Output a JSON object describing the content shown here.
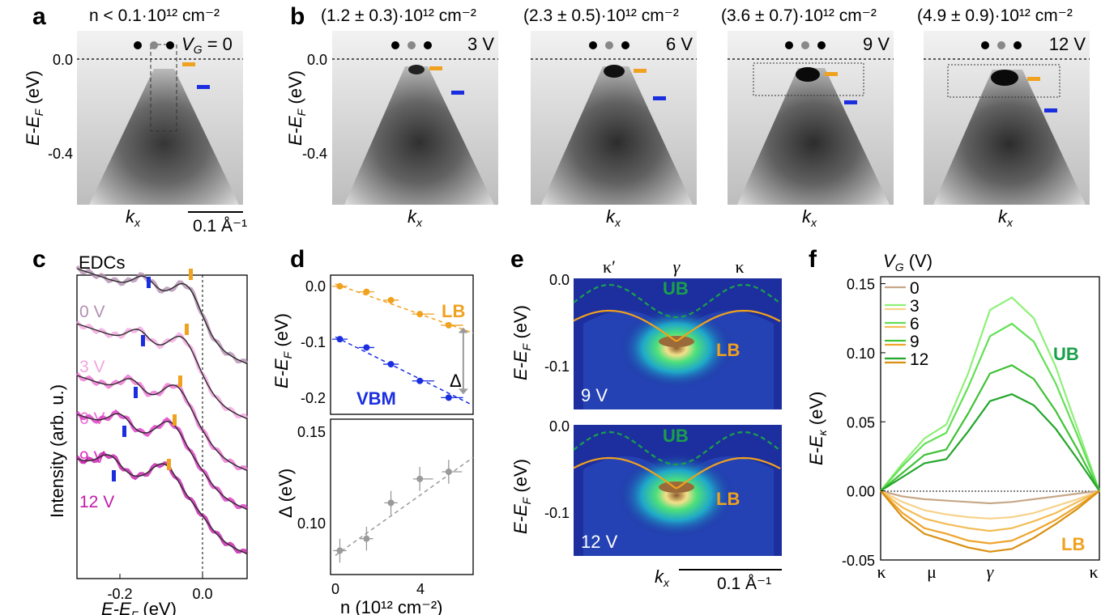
{
  "panels": {
    "a": {
      "letter": "a",
      "density": "n < 0.1·10¹² cm⁻²",
      "gate": "V",
      "gate_sub": "G",
      "gate_val": " = 0",
      "ylabel_main": "E-E",
      "ylabel_sub": "F",
      "ylabel_unit": " (eV)",
      "yticks": [
        "0.0",
        "-0.4"
      ],
      "xlabel": "k",
      "xlabel_sub": "x",
      "scalebar": "0.1 Å⁻¹"
    },
    "b": {
      "letter": "b",
      "subpanels": [
        {
          "density": "(1.2 ± 0.3)·10¹² cm⁻²",
          "voltage": "3 V"
        },
        {
          "density": "(2.3 ± 0.5)·10¹² cm⁻²",
          "voltage": "6 V"
        },
        {
          "density": "(3.6 ± 0.7)·10¹² cm⁻²",
          "voltage": "9 V"
        },
        {
          "density": "(4.9 ± 0.9)·10¹² cm⁻²",
          "voltage": "12 V"
        }
      ],
      "yticks": [
        "0.0",
        "-0.4"
      ],
      "xlabel": "k",
      "xlabel_sub": "x"
    },
    "c": {
      "letter": "c",
      "title": "EDCs",
      "ylabel": "Intensity (arb. u.)",
      "xlabel_main": "E-E",
      "xlabel_sub": "F",
      "xlabel_unit": " (eV)",
      "xticks": [
        "-0.2",
        "0.0"
      ],
      "curves": [
        {
          "label": "0 V",
          "color": "#b48fb2"
        },
        {
          "label": "3 V",
          "color": "#f2a5e0"
        },
        {
          "label": "6 V",
          "color": "#ec6fd2"
        },
        {
          "label": "9 V",
          "color": "#dc35c2"
        },
        {
          "label": "12 V",
          "color": "#c21aa8"
        }
      ]
    },
    "d": {
      "letter": "d",
      "top_ylabel_main": "E-E",
      "top_ylabel_sub": "F",
      "top_ylabel_unit": " (eV)",
      "top_yticks": [
        "0.0",
        "-0.1",
        "-0.2"
      ],
      "lb_label": "LB",
      "vbm_label": "VBM",
      "delta": "Δ",
      "bottom_ylabel": "Δ (eV)",
      "bottom_yticks": [
        "0.15",
        "0.10"
      ],
      "xlabel": "n (10¹² cm⁻²)",
      "xticks": [
        "0",
        "4"
      ]
    },
    "e": {
      "letter": "e",
      "top_labels": [
        "κ′",
        "γ",
        "κ"
      ],
      "ub": "UB",
      "lb": "LB",
      "ylabel_main": "E-E",
      "ylabel_sub": "F",
      "ylabel_unit": " (eV)",
      "yticks": [
        "0.0",
        "-0.1"
      ],
      "v_top": "9 V",
      "v_bottom": "12 V",
      "xlabel": "k",
      "xlabel_sub": "x",
      "scalebar": "0.1 Å⁻¹"
    },
    "f": {
      "letter": "f",
      "legend_title": "V",
      "legend_title_sub": "G",
      "legend_title_unit": " (V)",
      "legend": [
        "0",
        "3",
        "6",
        "9",
        "12"
      ],
      "ylabel_main": "E-E",
      "ylabel_sub": "κ",
      "ylabel_unit": " (eV)",
      "yticks": [
        "0.15",
        "0.10",
        "0.05",
        "0.00",
        "-0.05"
      ],
      "xticks": [
        "κ",
        "μ",
        "γ",
        "κ"
      ],
      "ub": "UB",
      "lb": "LB"
    }
  },
  "colors": {
    "orange": "#f0a11e",
    "blue": "#1a2ee0",
    "ub_green": "#1aa04a",
    "lb_orange": "#f0a11e",
    "gray": "#9a9a9a"
  },
  "chart_data": [
    {
      "type": "scatter",
      "panel": "d-top",
      "ylabel": "E-E_F (eV)",
      "ylim": [
        -0.24,
        0.01
      ],
      "xlim": [
        -0.2,
        6
      ],
      "series": [
        {
          "name": "LB",
          "x": [
            0,
            1.2,
            2.3,
            3.6,
            4.9
          ],
          "values": [
            -0.01,
            -0.02,
            -0.035,
            -0.06,
            -0.08
          ]
        },
        {
          "name": "VBM",
          "x": [
            0,
            1.2,
            2.3,
            3.6,
            4.9
          ],
          "values": [
            -0.105,
            -0.12,
            -0.15,
            -0.18,
            -0.21
          ]
        }
      ]
    },
    {
      "type": "scatter",
      "panel": "d-bottom",
      "xlabel": "n (10¹² cm⁻²)",
      "ylabel": "Δ (eV)",
      "ylim": [
        0.085,
        0.15
      ],
      "xlim": [
        -0.2,
        6
      ],
      "series": [
        {
          "x": [
            0,
            1.2,
            2.3,
            3.6,
            4.9
          ],
          "values": [
            0.095,
            0.1,
            0.115,
            0.125,
            0.128
          ]
        }
      ]
    },
    {
      "type": "line",
      "panel": "f",
      "ylabel": "E-E_κ (eV)",
      "ylim": [
        -0.05,
        0.15
      ],
      "x": [
        0,
        0.1,
        0.2,
        0.3,
        0.4,
        0.5,
        0.6,
        0.7,
        0.8,
        0.9,
        1.0
      ],
      "series": [
        {
          "name": "0",
          "values": [
            0,
            -0.004,
            -0.006,
            -0.007,
            -0.008,
            -0.009,
            -0.008,
            -0.006,
            -0.004,
            -0.002,
            0
          ]
        },
        {
          "name": "3",
          "values": [
            0,
            0.02,
            0.038,
            0.048,
            0.085,
            0.131,
            0.14,
            0.125,
            0.09,
            0.045,
            0
          ]
        },
        {
          "name": "6",
          "values": [
            0,
            0.018,
            0.034,
            0.042,
            0.075,
            0.112,
            0.121,
            0.108,
            0.078,
            0.04,
            0
          ]
        },
        {
          "name": "9",
          "values": [
            0,
            0.013,
            0.026,
            0.03,
            0.056,
            0.085,
            0.091,
            0.081,
            0.058,
            0.03,
            0
          ]
        },
        {
          "name": "12",
          "values": [
            0,
            0.01,
            0.02,
            0.023,
            0.043,
            0.065,
            0.07,
            0.062,
            0.045,
            0.023,
            0
          ]
        },
        {
          "name": "3",
          "values": [
            0,
            -0.008,
            -0.014,
            -0.017,
            -0.019,
            -0.02,
            -0.019,
            -0.016,
            -0.011,
            -0.006,
            0
          ]
        },
        {
          "name": "6",
          "values": [
            0,
            -0.012,
            -0.02,
            -0.024,
            -0.027,
            -0.029,
            -0.027,
            -0.022,
            -0.016,
            -0.008,
            0
          ]
        },
        {
          "name": "9",
          "values": [
            0,
            -0.016,
            -0.027,
            -0.031,
            -0.036,
            -0.038,
            -0.036,
            -0.029,
            -0.021,
            -0.011,
            0
          ]
        },
        {
          "name": "12",
          "values": [
            0,
            -0.019,
            -0.031,
            -0.036,
            -0.041,
            -0.044,
            -0.042,
            -0.034,
            -0.024,
            -0.013,
            0
          ]
        }
      ]
    }
  ]
}
